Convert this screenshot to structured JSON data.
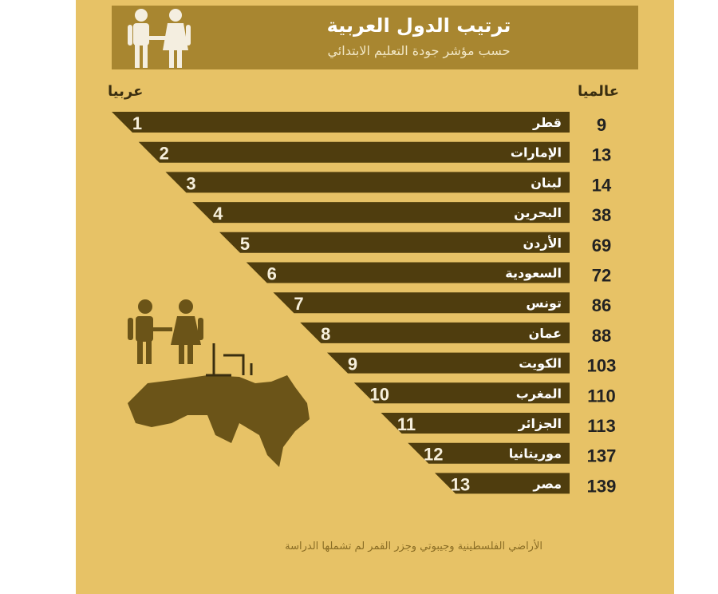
{
  "header": {
    "title": "ترتيب الدول العربية",
    "subtitle": "حسب مؤشر جودة التعليم الابتدائي"
  },
  "columns": {
    "arab_rank": "عربيا",
    "world_rank": "عالميا"
  },
  "footer": "الأراضي الفلسطينية وجيبوتي وجزر القمر لم تشملها الدراسة",
  "colors": {
    "panel": "#e7c266",
    "header": "#a88630",
    "bar": "#4f3d0e",
    "bar_text": "#ffffff",
    "rank_text": "#222222"
  },
  "icons": [
    "people-icon",
    "arab-map-icon",
    "arabic-letters-icon"
  ],
  "chart_data": {
    "type": "bar",
    "categories": [
      "قطر",
      "الإمارات",
      "لبنان",
      "البحرين",
      "الأردن",
      "السعودية",
      "تونس",
      "عمان",
      "الكويت",
      "المغرب",
      "الجزائر",
      "موريتانيا",
      "مصر"
    ],
    "arab_rank": [
      1,
      2,
      3,
      4,
      5,
      6,
      7,
      8,
      9,
      10,
      11,
      12,
      13
    ],
    "world_rank": [
      9,
      13,
      14,
      38,
      69,
      72,
      86,
      88,
      103,
      110,
      113,
      137,
      139
    ]
  }
}
